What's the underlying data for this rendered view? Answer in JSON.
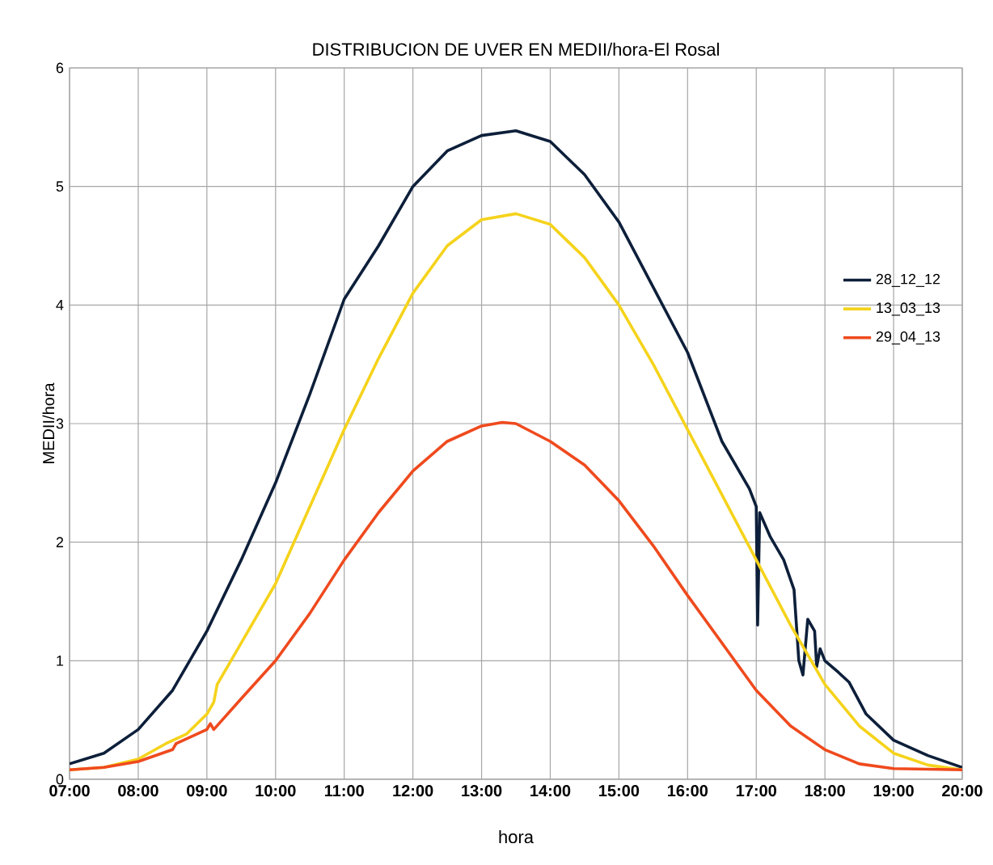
{
  "chart_data": {
    "type": "line",
    "title": "DISTRIBUCION DE UVER EN MEDII/hora-El Rosal",
    "xlabel": "hora",
    "ylabel": "MEDII/hora",
    "xlim": [
      7,
      20
    ],
    "ylim": [
      0,
      6
    ],
    "xticks": [
      {
        "value": 7,
        "label": "07:00"
      },
      {
        "value": 8,
        "label": "08:00"
      },
      {
        "value": 9,
        "label": "09:00"
      },
      {
        "value": 10,
        "label": "10:00"
      },
      {
        "value": 11,
        "label": "11:00"
      },
      {
        "value": 12,
        "label": "12:00"
      },
      {
        "value": 13,
        "label": "13:00"
      },
      {
        "value": 14,
        "label": "14:00"
      },
      {
        "value": 15,
        "label": "15:00"
      },
      {
        "value": 16,
        "label": "16:00"
      },
      {
        "value": 17,
        "label": "17:00"
      },
      {
        "value": 18,
        "label": "18:00"
      },
      {
        "value": 19,
        "label": "19:00"
      },
      {
        "value": 20,
        "label": "20:00"
      }
    ],
    "yticks": [
      0,
      1,
      2,
      3,
      4,
      5,
      6
    ],
    "grid": true,
    "legend": "right",
    "marker": "none",
    "line_style": "solid",
    "series": [
      {
        "name": "28_12_12",
        "color": "#0d1f3a",
        "x": [
          7,
          7.5,
          8,
          8.5,
          9,
          9.5,
          10,
          10.5,
          11,
          11.5,
          12,
          12.5,
          13,
          13.5,
          14,
          14.5,
          15,
          15.5,
          16,
          16.5,
          16.9,
          17,
          17.02,
          17.05,
          17.2,
          17.4,
          17.55,
          17.62,
          17.68,
          17.75,
          17.85,
          17.88,
          17.93,
          18,
          18.2,
          18.35,
          18.6,
          19,
          19.5,
          20
        ],
        "values": [
          0.13,
          0.22,
          0.42,
          0.75,
          1.25,
          1.85,
          2.5,
          3.25,
          4.05,
          4.5,
          5.0,
          5.3,
          5.43,
          5.47,
          5.38,
          5.1,
          4.7,
          4.15,
          3.6,
          2.85,
          2.45,
          2.3,
          1.3,
          2.25,
          2.05,
          1.85,
          1.6,
          1.0,
          0.88,
          1.35,
          1.25,
          0.95,
          1.1,
          1.0,
          0.9,
          0.82,
          0.55,
          0.33,
          0.2,
          0.1
        ]
      },
      {
        "name": "13_03_13",
        "color": "#f5d31c",
        "x": [
          7,
          7.5,
          8,
          8.4,
          8.7,
          9,
          9.1,
          9.15,
          9.5,
          10,
          10.5,
          11,
          11.5,
          12,
          12.5,
          13,
          13.5,
          14,
          14.5,
          15,
          15.5,
          16,
          16.5,
          17,
          17.5,
          18,
          18.5,
          19,
          19.5,
          20
        ],
        "values": [
          0.08,
          0.1,
          0.17,
          0.3,
          0.38,
          0.55,
          0.65,
          0.8,
          1.15,
          1.65,
          2.3,
          2.95,
          3.55,
          4.1,
          4.5,
          4.72,
          4.77,
          4.68,
          4.4,
          4.0,
          3.5,
          2.95,
          2.4,
          1.85,
          1.3,
          0.8,
          0.45,
          0.22,
          0.12,
          0.08
        ]
      },
      {
        "name": "29_04_13",
        "color": "#ef4a1e",
        "x": [
          7,
          7.5,
          8,
          8.5,
          8.55,
          9,
          9.05,
          9.1,
          9.5,
          10,
          10.5,
          11,
          11.5,
          12,
          12.5,
          13,
          13.3,
          13.5,
          14,
          14.5,
          15,
          15.5,
          16,
          16.5,
          17,
          17.5,
          18,
          18.5,
          19,
          20
        ],
        "values": [
          0.08,
          0.1,
          0.15,
          0.25,
          0.3,
          0.42,
          0.47,
          0.42,
          0.68,
          1.0,
          1.4,
          1.85,
          2.25,
          2.6,
          2.85,
          2.98,
          3.01,
          3.0,
          2.85,
          2.65,
          2.35,
          1.97,
          1.55,
          1.15,
          0.75,
          0.45,
          0.25,
          0.13,
          0.09,
          0.08
        ]
      }
    ]
  }
}
